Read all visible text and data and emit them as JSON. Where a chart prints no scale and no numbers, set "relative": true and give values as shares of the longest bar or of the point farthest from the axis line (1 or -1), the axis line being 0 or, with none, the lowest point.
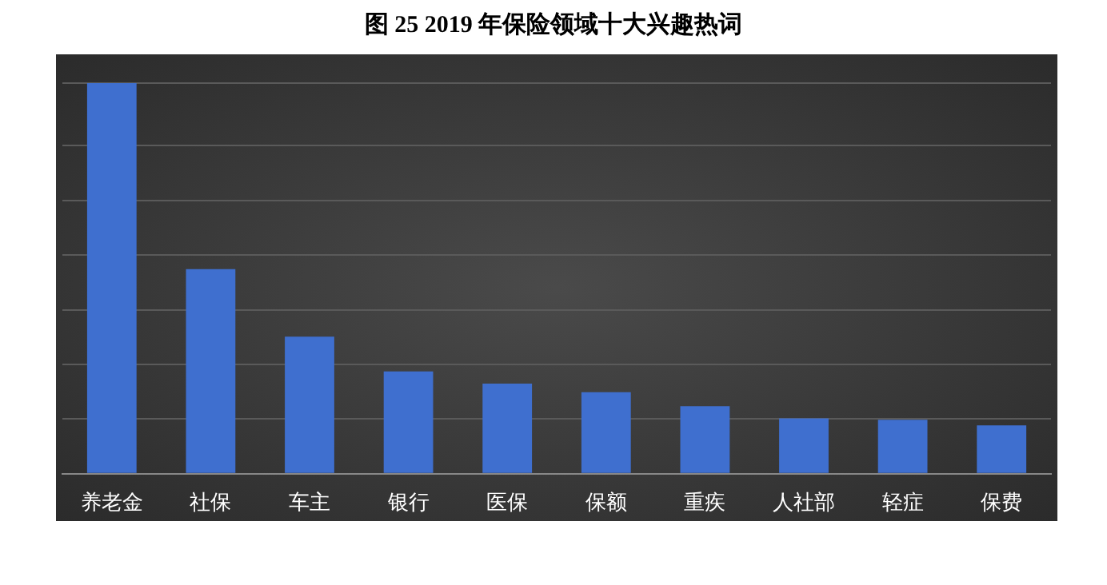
{
  "chart_data": {
    "type": "bar",
    "title": "图 25 2019 年保险领域十大兴趣热词",
    "categories": [
      "养老金",
      "社保",
      "车主",
      "银行",
      "医保",
      "保额",
      "重疾",
      "人社部",
      "轻症",
      "保费"
    ],
    "values": [
      1,
      0.524,
      0.351,
      0.262,
      0.231,
      0.209,
      0.173,
      0.142,
      0.138,
      0.124
    ],
    "color": "#3f6fcf",
    "relative": true,
    "grid": "y"
  }
}
